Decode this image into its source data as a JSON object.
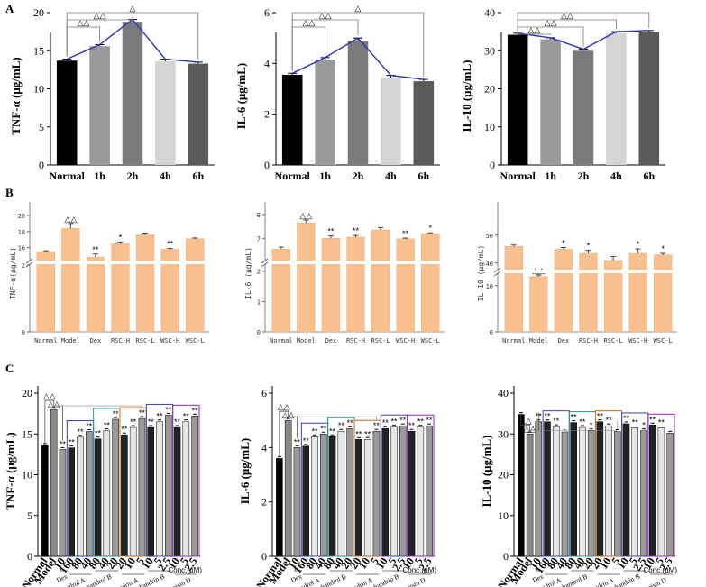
{
  "panel_labels": {
    "a": "A",
    "b": "B",
    "c": "C"
  },
  "conc_label": "Conc.(μM)",
  "chart_data": [
    {
      "type": "bar",
      "panel": "A",
      "ylabel": "TNF-α (μg/mL)",
      "ylim": [
        0,
        20
      ],
      "yticks": [
        0,
        5,
        10,
        15,
        20
      ],
      "categories": [
        "Normal",
        "1h",
        "2h",
        "4h",
        "6h"
      ],
      "values": [
        13.7,
        15.6,
        18.8,
        13.6,
        13.3
      ],
      "errors": [
        0.2,
        0.2,
        0.3,
        0.3,
        0.2
      ],
      "colors": [
        "#000000",
        "#9a9a9a",
        "#7a7a7a",
        "#d4d4d4",
        "#5a5a5a"
      ],
      "line": true,
      "brackets": [
        {
          "from": 0,
          "to": 1,
          "label": "△△"
        },
        {
          "from": 0,
          "to": 2,
          "label": "△△"
        },
        {
          "from": 0,
          "to": 4,
          "label": "△"
        }
      ]
    },
    {
      "type": "bar",
      "panel": "A",
      "ylabel": "IL-6 (μg/mL)",
      "ylim": [
        0,
        6
      ],
      "yticks": [
        0,
        2,
        4,
        6
      ],
      "categories": [
        "Normal",
        "1h",
        "2h",
        "4h",
        "6h"
      ],
      "values": [
        3.55,
        4.15,
        4.9,
        3.45,
        3.3
      ],
      "errors": [
        0.06,
        0.08,
        0.1,
        0.08,
        0.07
      ],
      "colors": [
        "#000000",
        "#9a9a9a",
        "#7a7a7a",
        "#d4d4d4",
        "#5a5a5a"
      ],
      "line": true,
      "brackets": [
        {
          "from": 0,
          "to": 1,
          "label": "△△"
        },
        {
          "from": 0,
          "to": 2,
          "label": "△△"
        },
        {
          "from": 0,
          "to": 4,
          "label": "△"
        }
      ]
    },
    {
      "type": "bar",
      "panel": "A",
      "ylabel": "IL-10 (μg/mL)",
      "ylim": [
        0,
        40
      ],
      "yticks": [
        0,
        10,
        20,
        30,
        40
      ],
      "categories": [
        "Normal",
        "1h",
        "2h",
        "4h",
        "6h"
      ],
      "values": [
        34.2,
        33.0,
        30.0,
        34.6,
        34.9
      ],
      "errors": [
        0.4,
        0.4,
        0.4,
        0.4,
        0.4
      ],
      "colors": [
        "#000000",
        "#9a9a9a",
        "#7a7a7a",
        "#d4d4d4",
        "#5a5a5a"
      ],
      "line": true,
      "brackets": [
        {
          "from": 0,
          "to": 1,
          "label": "△△"
        },
        {
          "from": 0,
          "to": 2,
          "label": "△△"
        },
        {
          "from": 0,
          "to": 3,
          "label": "△△"
        },
        {
          "from": 0,
          "to": 4,
          "label": ""
        }
      ]
    },
    {
      "type": "bar",
      "panel": "B",
      "ylabel": "TNF-α(μg/mL)",
      "categories": [
        "Normal",
        "Model",
        "Dex",
        "RSC-H",
        "RSC-L",
        "WSC-H",
        "WSC-L"
      ],
      "values": [
        15.5,
        18.4,
        14.8,
        16.5,
        17.6,
        15.8,
        17.1
      ],
      "errors": [
        0.1,
        0.6,
        0.4,
        0.2,
        0.2,
        0.1,
        0.1
      ],
      "upper_range": [
        14.5,
        21
      ],
      "upper_ticks": [
        16,
        18,
        20
      ],
      "lower_range": [
        0,
        2
      ],
      "lower_ticks": [
        0,
        2
      ],
      "sig": [
        "",
        "△△",
        "**",
        "*",
        "",
        "**",
        ""
      ]
    },
    {
      "type": "bar",
      "panel": "B",
      "ylabel": "IL-6 (μg/mL)",
      "categories": [
        "Normal",
        "Model",
        "Dex",
        "RSC-H",
        "RSC-L",
        "WSC-H",
        "WSC-L"
      ],
      "values": [
        6.55,
        7.65,
        7.0,
        7.05,
        7.35,
        6.98,
        7.2
      ],
      "errors": [
        0.08,
        0.12,
        0.1,
        0.07,
        0.1,
        0.03,
        0.03
      ],
      "upper_range": [
        6.1,
        8.3
      ],
      "upper_ticks": [
        7,
        8
      ],
      "lower_range": [
        0,
        2.2
      ],
      "lower_ticks": [
        0,
        1,
        2
      ],
      "sig": [
        "",
        "△△",
        "**",
        "**",
        "",
        "**",
        "*"
      ]
    },
    {
      "type": "bar",
      "panel": "B",
      "ylabel": "IL-10 (μg/mL)",
      "categories": [
        "Normal",
        "Model",
        "Dex",
        "RSC-H",
        "RSC-L",
        "WSC-H",
        "WSC-L"
      ],
      "values": [
        46,
        12,
        45,
        43.5,
        41,
        43.5,
        43
      ],
      "errors": [
        0.5,
        0.3,
        0.6,
        1.1,
        1.4,
        1.6,
        0.5
      ],
      "upper_range": [
        38,
        60
      ],
      "upper_ticks": [
        40,
        50
      ],
      "lower_range": [
        0,
        12.5
      ],
      "lower_ticks": [
        0,
        10
      ],
      "sig": [
        "",
        "△△",
        "*",
        "*",
        "",
        "*",
        "*"
      ]
    },
    {
      "type": "bar",
      "panel": "C",
      "ylabel": "TNF-α (μg/mL)",
      "ylim": [
        0,
        20
      ],
      "yticks": [
        0,
        5,
        10,
        15,
        20
      ],
      "categories": [
        "Normal",
        "Model",
        "10",
        "160",
        "80",
        "40",
        "80",
        "40",
        "20",
        "20",
        "10",
        "5",
        "10",
        "5",
        "2.5",
        "10",
        "5",
        "2.5"
      ],
      "values": [
        13.6,
        18.0,
        13.1,
        13.3,
        14.6,
        15.3,
        14.4,
        15.4,
        16.8,
        14.9,
        15.8,
        16.9,
        15.8,
        16.5,
        17.3,
        15.8,
        16.5,
        17.2
      ],
      "sig": [
        "",
        "△△",
        "**",
        "**",
        "**",
        "**",
        "**",
        "**",
        "**",
        "**",
        "**",
        "**",
        "**",
        "**",
        "**",
        "**",
        "**",
        "**"
      ],
      "groups": [
        "Dex",
        "Schishandrol A",
        "Schishandrol B",
        "Schisandrin A",
        "Schishandrin B",
        "Gomisin D"
      ]
    },
    {
      "type": "bar",
      "panel": "C",
      "ylabel": "IL-6 (μg/mL)",
      "ylim": [
        0,
        6
      ],
      "yticks": [
        0,
        2,
        4,
        6
      ],
      "categories": [
        "Normal",
        "Model",
        "10",
        "160",
        "80",
        "40",
        "80",
        "40",
        "20",
        "20",
        "10",
        "5",
        "10",
        "5",
        "2.5",
        "10",
        "5",
        "2.5"
      ],
      "values": [
        3.6,
        5.0,
        4.0,
        4.05,
        4.4,
        4.5,
        4.4,
        4.6,
        4.7,
        4.3,
        4.3,
        4.6,
        4.7,
        4.75,
        4.8,
        4.6,
        4.75,
        4.8
      ],
      "sig": [
        "",
        "△△",
        "**",
        "**",
        "**",
        "**",
        "**",
        "**",
        "**",
        "**",
        "**",
        "**",
        "**",
        "**",
        "**",
        "**",
        "**",
        "**"
      ],
      "groups": [
        "Dex",
        "Schishandrol A",
        "Schishandrol B",
        "Schisandrin A",
        "Schishandrin B",
        "Gomisin D"
      ]
    },
    {
      "type": "bar",
      "panel": "C",
      "ylabel": "IL-10 (μg/mL)",
      "ylim": [
        0,
        40
      ],
      "yticks": [
        0,
        10,
        20,
        30,
        40
      ],
      "categories": [
        "Normal",
        "Model",
        "10",
        "160",
        "80",
        "40",
        "80",
        "40",
        "20",
        "20",
        "10",
        "5",
        "10",
        "5",
        "2.5",
        "10",
        "5",
        "2.5"
      ],
      "values": [
        34.8,
        30.0,
        33.0,
        33.0,
        31.8,
        30.5,
        32.8,
        31.6,
        30.8,
        33.0,
        32.0,
        30.6,
        32.5,
        31.5,
        30.8,
        32.2,
        31.5,
        30.2
      ],
      "sig": [
        "",
        "△△",
        "**",
        "**",
        "**",
        "",
        "**",
        "**",
        "*",
        "**",
        "**",
        "",
        "**",
        "**",
        "*",
        "**",
        "**",
        ""
      ],
      "groups": [
        "Dex",
        "Schishandrol A",
        "Schishandrol B",
        "Schisandrin A",
        "Schishandrin B",
        "Gomisin D"
      ]
    }
  ]
}
